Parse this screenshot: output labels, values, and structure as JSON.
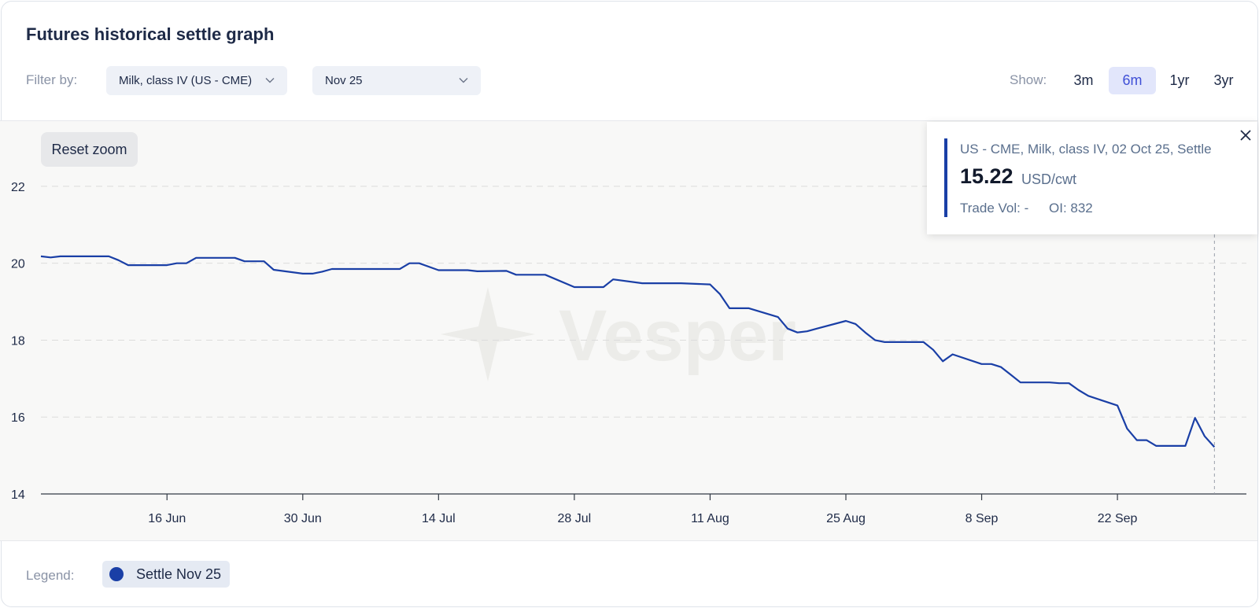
{
  "header": {
    "title": "Futures historical settle graph",
    "filter_label": "Filter by:",
    "product_select": "Milk, class IV (US - CME)",
    "contract_select": "Nov 25",
    "show_label": "Show:",
    "ranges": [
      {
        "label": "3m",
        "active": false
      },
      {
        "label": "6m",
        "active": true
      },
      {
        "label": "1yr",
        "active": false
      },
      {
        "label": "3yr",
        "active": false
      }
    ]
  },
  "chart": {
    "reset_zoom_label": "Reset zoom",
    "watermark_text": "Vesper"
  },
  "tooltip": {
    "header": "US - CME, Milk, class IV, 02 Oct 25, Settle",
    "value": "15.22",
    "unit": "USD/cwt",
    "trade_vol": "Trade Vol: -",
    "oi": "OI: 832"
  },
  "legend": {
    "label": "Legend:",
    "items": [
      {
        "label": "Settle Nov 25",
        "color": "#1a3fa6"
      }
    ]
  },
  "colors": {
    "line": "#1a3fa6",
    "accent": "#3f4fd6"
  },
  "chart_data": {
    "type": "line",
    "title": "Futures historical settle graph",
    "xlabel": "",
    "ylabel": "",
    "ylim": [
      14,
      23
    ],
    "yticks": [
      14,
      16,
      18,
      20,
      22
    ],
    "xticks": [
      {
        "label": "16 Jun",
        "date": "2025-06-16"
      },
      {
        "label": "30 Jun",
        "date": "2025-06-30"
      },
      {
        "label": "14 Jul",
        "date": "2025-07-14"
      },
      {
        "label": "28 Jul",
        "date": "2025-07-28"
      },
      {
        "label": "11 Aug",
        "date": "2025-08-11"
      },
      {
        "label": "25 Aug",
        "date": "2025-08-25"
      },
      {
        "label": "8 Sep",
        "date": "2025-09-08"
      },
      {
        "label": "22 Sep",
        "date": "2025-09-22"
      }
    ],
    "xlim": [
      "2025-06-03",
      "2025-10-04"
    ],
    "grid": true,
    "legend_position": "bottom-left",
    "series": [
      {
        "name": "Settle Nov 25",
        "color": "#1a3fa6",
        "points": [
          [
            "2025-06-03",
            20.18
          ],
          [
            "2025-06-04",
            20.15
          ],
          [
            "2025-06-05",
            20.18
          ],
          [
            "2025-06-06",
            20.18
          ],
          [
            "2025-06-09",
            20.18
          ],
          [
            "2025-06-10",
            20.18
          ],
          [
            "2025-06-11",
            20.08
          ],
          [
            "2025-06-12",
            19.95
          ],
          [
            "2025-06-13",
            19.95
          ],
          [
            "2025-06-16",
            19.95
          ],
          [
            "2025-06-17",
            20.0
          ],
          [
            "2025-06-18",
            20.0
          ],
          [
            "2025-06-19",
            20.14
          ],
          [
            "2025-06-20",
            20.14
          ],
          [
            "2025-06-23",
            20.14
          ],
          [
            "2025-06-24",
            20.05
          ],
          [
            "2025-06-25",
            20.05
          ],
          [
            "2025-06-26",
            20.05
          ],
          [
            "2025-06-27",
            19.83
          ],
          [
            "2025-06-30",
            19.73
          ],
          [
            "2025-07-01",
            19.73
          ],
          [
            "2025-07-02",
            19.78
          ],
          [
            "2025-07-03",
            19.85
          ],
          [
            "2025-07-07",
            19.85
          ],
          [
            "2025-07-08",
            19.85
          ],
          [
            "2025-07-09",
            19.85
          ],
          [
            "2025-07-10",
            19.85
          ],
          [
            "2025-07-11",
            20.0
          ],
          [
            "2025-07-12",
            20.0
          ],
          [
            "2025-07-14",
            19.82
          ],
          [
            "2025-07-15",
            19.82
          ],
          [
            "2025-07-16",
            19.82
          ],
          [
            "2025-07-17",
            19.82
          ],
          [
            "2025-07-18",
            19.79
          ],
          [
            "2025-07-21",
            19.8
          ],
          [
            "2025-07-22",
            19.7
          ],
          [
            "2025-07-23",
            19.7
          ],
          [
            "2025-07-24",
            19.7
          ],
          [
            "2025-07-25",
            19.7
          ],
          [
            "2025-07-28",
            19.38
          ],
          [
            "2025-07-29",
            19.38
          ],
          [
            "2025-07-30",
            19.38
          ],
          [
            "2025-07-31",
            19.38
          ],
          [
            "2025-08-01",
            19.58
          ],
          [
            "2025-08-04",
            19.48
          ],
          [
            "2025-08-05",
            19.48
          ],
          [
            "2025-08-06",
            19.48
          ],
          [
            "2025-08-07",
            19.48
          ],
          [
            "2025-08-08",
            19.48
          ],
          [
            "2025-08-11",
            19.45
          ],
          [
            "2025-08-12",
            19.2
          ],
          [
            "2025-08-13",
            18.83
          ],
          [
            "2025-08-14",
            18.83
          ],
          [
            "2025-08-15",
            18.83
          ],
          [
            "2025-08-18",
            18.6
          ],
          [
            "2025-08-19",
            18.3
          ],
          [
            "2025-08-20",
            18.2
          ],
          [
            "2025-08-21",
            18.23
          ],
          [
            "2025-08-22",
            18.3
          ],
          [
            "2025-08-25",
            18.5
          ],
          [
            "2025-08-26",
            18.42
          ],
          [
            "2025-08-27",
            18.2
          ],
          [
            "2025-08-28",
            18.0
          ],
          [
            "2025-08-29",
            17.95
          ],
          [
            "2025-09-01",
            17.95
          ],
          [
            "2025-09-02",
            17.95
          ],
          [
            "2025-09-03",
            17.75
          ],
          [
            "2025-09-04",
            17.45
          ],
          [
            "2025-09-05",
            17.63
          ],
          [
            "2025-09-08",
            17.38
          ],
          [
            "2025-09-09",
            17.38
          ],
          [
            "2025-09-10",
            17.3
          ],
          [
            "2025-09-11",
            17.1
          ],
          [
            "2025-09-12",
            16.9
          ],
          [
            "2025-09-15",
            16.9
          ],
          [
            "2025-09-16",
            16.88
          ],
          [
            "2025-09-17",
            16.88
          ],
          [
            "2025-09-18",
            16.7
          ],
          [
            "2025-09-19",
            16.55
          ],
          [
            "2025-09-22",
            16.3
          ],
          [
            "2025-09-23",
            15.7
          ],
          [
            "2025-09-24",
            15.4
          ],
          [
            "2025-09-25",
            15.4
          ],
          [
            "2025-09-26",
            15.25
          ],
          [
            "2025-09-29",
            15.25
          ],
          [
            "2025-09-30",
            15.98
          ],
          [
            "2025-10-01",
            15.5
          ],
          [
            "2025-10-02",
            15.22
          ]
        ]
      }
    ]
  }
}
